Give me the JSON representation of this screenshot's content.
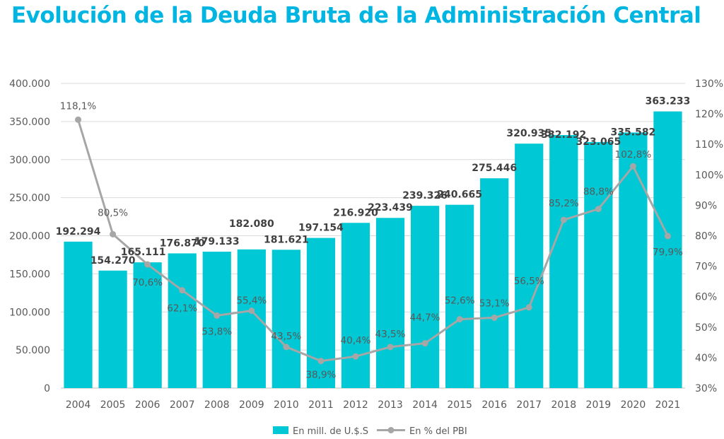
{
  "chart_data": {
    "type": "bar",
    "title": "Evolución de la Deuda Bruta de la Administración Central",
    "categories": [
      "2004",
      "2005",
      "2006",
      "2007",
      "2008",
      "2009",
      "2010",
      "2011",
      "2012",
      "2013",
      "2014",
      "2015",
      "2016",
      "2017",
      "2018",
      "2019",
      "2020",
      "2021"
    ],
    "series": [
      {
        "name": "En mill. de U.$.S",
        "type": "bar",
        "axis": "left",
        "values": [
          192294,
          154270,
          165111,
          176870,
          179133,
          182080,
          181621,
          197154,
          216920,
          223439,
          239326,
          240665,
          275446,
          320935,
          332192,
          323065,
          335582,
          363233
        ],
        "labels": [
          "192.294",
          "154.270",
          "165.111",
          "176.870",
          "179.133",
          "182.080",
          "181.621",
          "197.154",
          "216.920",
          "223.439",
          "239.326",
          "240.665",
          "275.446",
          "320.935",
          "332.192",
          "323.065",
          "335.582",
          "363.233"
        ]
      },
      {
        "name": "En % del PBI",
        "type": "line",
        "axis": "right",
        "values": [
          118.1,
          80.5,
          70.6,
          62.1,
          53.8,
          55.4,
          43.5,
          38.9,
          40.4,
          43.5,
          44.7,
          52.6,
          53.1,
          56.5,
          85.2,
          88.8,
          102.8,
          79.9
        ],
        "labels": [
          "118,1%",
          "80,5%",
          "70,6%",
          "62,1%",
          "53,8%",
          "55,4%",
          "43,5%",
          "38,9%",
          "40,4%",
          "43,5%",
          "44,7%",
          "52,6%",
          "53,1%",
          "56,5%",
          "85,2%",
          "88,8%",
          "102,8%",
          "79,9%"
        ]
      }
    ],
    "y_left": {
      "lim": [
        0,
        400000
      ],
      "ticks": [
        0,
        50000,
        100000,
        150000,
        200000,
        250000,
        300000,
        350000,
        400000
      ],
      "tick_labels": [
        "0",
        "50.000",
        "100.000",
        "150.000",
        "200.000",
        "250.000",
        "300.000",
        "350.000",
        "400.000"
      ]
    },
    "y_right": {
      "lim": [
        30,
        130
      ],
      "ticks": [
        30,
        40,
        50,
        60,
        70,
        80,
        90,
        100,
        110,
        120,
        130
      ],
      "tick_labels": [
        "30%",
        "40%",
        "50%",
        "60%",
        "70%",
        "80%",
        "90%",
        "100%",
        "110%",
        "120%",
        "130%"
      ]
    },
    "grid": true,
    "legend": "bottom",
    "colors": {
      "title": "#00B5E2",
      "bar": "#00C8D4",
      "line": "#A6A6A6",
      "grid": "#D9D9D9"
    }
  }
}
